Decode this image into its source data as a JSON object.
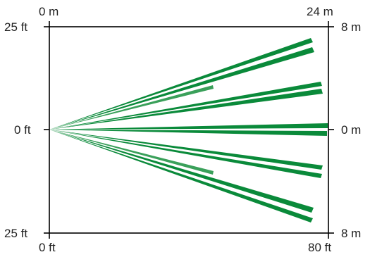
{
  "axis_labels": {
    "top_left_m": "0 m",
    "top_right_m": "24 m",
    "left_top_ft": "25 ft",
    "left_mid_ft": "0 ft",
    "left_bottom_ft": "25 ft",
    "right_top_m": "8 m",
    "right_mid_m": "0 m",
    "right_bottom_m": "8 m",
    "bottom_left_ft": "0 ft",
    "bottom_right_ft": "80 ft"
  },
  "colors": {
    "frame": "#000000",
    "beam": "#0a8a3a",
    "beam_short": "#3aa05a"
  }
}
